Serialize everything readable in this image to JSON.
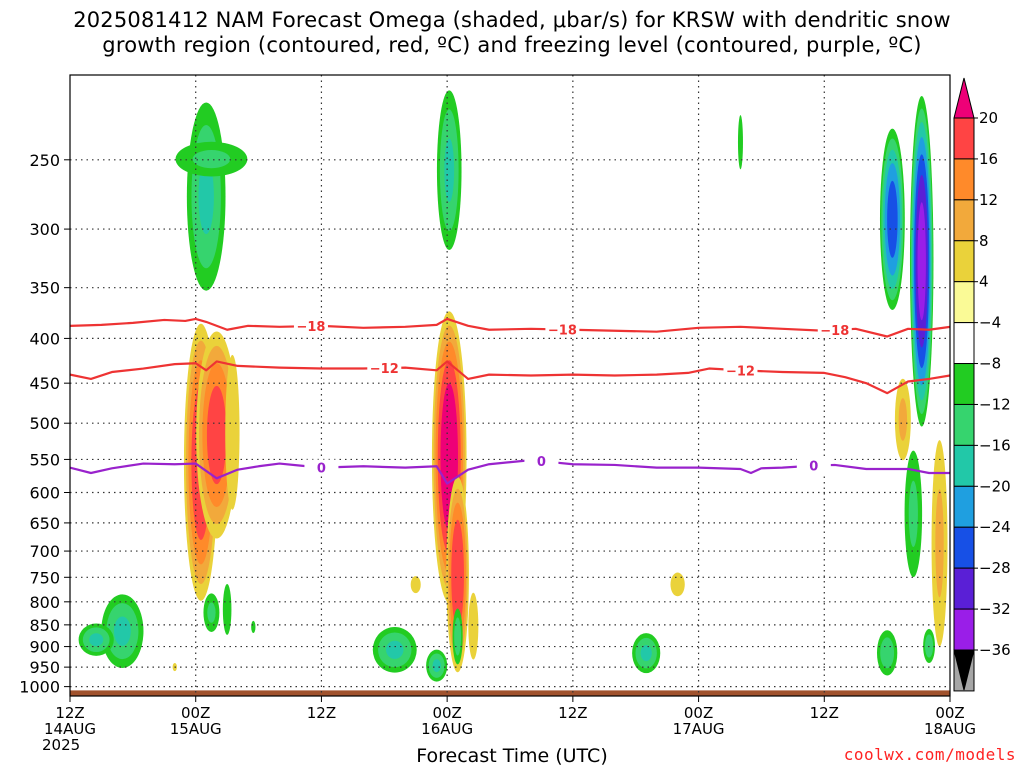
{
  "title_line1": "2025081412 NAM Forecast Omega (shaded, μbar/s) for KRSW with dendritic snow",
  "title_line2": "growth region (contoured, red, ºC) and freezing level (contoured, purple, ºC)",
  "xlabel": "Forecast Time (UTC)",
  "credit": "coolwx.com/models",
  "chart_data": {
    "type": "heatmap",
    "title": "2025081412 NAM Forecast Omega (shaded, μbar/s) for KRSW with dendritic snow growth region (contoured, red, ºC) and freezing level (contoured, purple, ºC)",
    "xlabel": "Forecast Time (UTC)",
    "ylabel": "",
    "x_range_hours": [
      0,
      84
    ],
    "y_range_hpa": [
      200,
      1025
    ],
    "y_scale": "log-pressure",
    "y_ticks": [
      "250",
      "300",
      "350",
      "400",
      "450",
      "500",
      "550",
      "600",
      "650",
      "700",
      "750",
      "800",
      "850",
      "900",
      "950",
      "1000"
    ],
    "x_ticks": [
      {
        "hour": 0,
        "lines": [
          "12Z",
          "14AUG",
          "2025"
        ]
      },
      {
        "hour": 12,
        "lines": [
          "00Z",
          "15AUG"
        ]
      },
      {
        "hour": 24,
        "lines": [
          "12Z"
        ]
      },
      {
        "hour": 36,
        "lines": [
          "00Z",
          "16AUG"
        ]
      },
      {
        "hour": 48,
        "lines": [
          "12Z"
        ]
      },
      {
        "hour": 60,
        "lines": [
          "00Z",
          "17AUG"
        ]
      },
      {
        "hour": 72,
        "lines": [
          "12Z"
        ]
      },
      {
        "hour": 84,
        "lines": [
          "00Z",
          "18AUG"
        ]
      }
    ],
    "grid": true,
    "colorbar": {
      "labels": [
        "20",
        "16",
        "12",
        "8",
        "4",
        "-4",
        "-8",
        "-12",
        "-16",
        "-20",
        "-24",
        "-28",
        "-32",
        "-36"
      ],
      "colors": [
        "#ff4444",
        "#ff8a2a",
        "#f2a93b",
        "#ead23a",
        "#fafa96",
        "#ffffff",
        "#22cc22",
        "#36d46e",
        "#22c8a8",
        "#1f9fe0",
        "#1750e6",
        "#5a1fd6",
        "#9a1ee8",
        "#a6a6a6"
      ],
      "top_arrow_color": "#ee0077",
      "bottom_arrow_color": "#000000"
    },
    "contours": [
      {
        "name": "-18",
        "color": "#ee3333",
        "label_hours": [
          23,
          47,
          73
        ],
        "points": [
          [
            0,
            387
          ],
          [
            3,
            386
          ],
          [
            6,
            384
          ],
          [
            9,
            381
          ],
          [
            11,
            382
          ],
          [
            12,
            380
          ],
          [
            13,
            383
          ],
          [
            15,
            391
          ],
          [
            17,
            387
          ],
          [
            20,
            388
          ],
          [
            24,
            387
          ],
          [
            28,
            389
          ],
          [
            32,
            388
          ],
          [
            35,
            386
          ],
          [
            36,
            380
          ],
          [
            38,
            387
          ],
          [
            40,
            391
          ],
          [
            44,
            390
          ],
          [
            48,
            391
          ],
          [
            52,
            392
          ],
          [
            56,
            393
          ],
          [
            60,
            389
          ],
          [
            64,
            388
          ],
          [
            68,
            390
          ],
          [
            72,
            392
          ],
          [
            75,
            390
          ],
          [
            78,
            398
          ],
          [
            80,
            390
          ],
          [
            82,
            391
          ],
          [
            84,
            388
          ]
        ]
      },
      {
        "name": "-12",
        "color": "#ee3333",
        "label_hours": [
          30,
          64
        ],
        "points": [
          [
            0,
            440
          ],
          [
            2,
            445
          ],
          [
            4,
            437
          ],
          [
            7,
            433
          ],
          [
            10,
            428
          ],
          [
            12,
            427
          ],
          [
            13,
            435
          ],
          [
            14,
            425
          ],
          [
            16,
            430
          ],
          [
            20,
            432
          ],
          [
            24,
            433
          ],
          [
            28,
            433
          ],
          [
            32,
            432
          ],
          [
            35,
            435
          ],
          [
            36,
            425
          ],
          [
            38,
            445
          ],
          [
            40,
            440
          ],
          [
            44,
            441
          ],
          [
            48,
            440
          ],
          [
            52,
            441
          ],
          [
            56,
            440
          ],
          [
            59,
            438
          ],
          [
            61,
            433
          ],
          [
            64,
            435
          ],
          [
            68,
            437
          ],
          [
            72,
            438
          ],
          [
            74,
            443
          ],
          [
            76,
            450
          ],
          [
            78,
            462
          ],
          [
            80,
            448
          ],
          [
            82,
            445
          ],
          [
            84,
            441
          ]
        ]
      },
      {
        "name": "0",
        "color": "#9922cc",
        "label_hours": [
          24,
          45,
          71
        ],
        "points": [
          [
            0,
            562
          ],
          [
            2,
            570
          ],
          [
            4,
            563
          ],
          [
            7,
            556
          ],
          [
            10,
            557
          ],
          [
            12,
            556
          ],
          [
            14,
            578
          ],
          [
            16,
            565
          ],
          [
            18,
            560
          ],
          [
            20,
            556
          ],
          [
            22,
            559
          ],
          [
            24,
            562
          ],
          [
            28,
            560
          ],
          [
            32,
            562
          ],
          [
            35,
            560
          ],
          [
            36,
            586
          ],
          [
            38,
            565
          ],
          [
            40,
            557
          ],
          [
            44,
            551
          ],
          [
            46,
            554
          ],
          [
            48,
            557
          ],
          [
            52,
            558
          ],
          [
            56,
            562
          ],
          [
            60,
            562
          ],
          [
            64,
            564
          ],
          [
            65,
            570
          ],
          [
            66,
            563
          ],
          [
            68,
            562
          ],
          [
            71,
            559
          ],
          [
            73,
            558
          ],
          [
            76,
            564
          ],
          [
            80,
            564
          ],
          [
            82,
            570
          ],
          [
            84,
            570
          ]
        ]
      }
    ],
    "omega_blobs": [
      {
        "hour": 13.0,
        "p_top": 205,
        "p_bot": 370,
        "hw": 2.2,
        "max": -12
      },
      {
        "hour": 13.5,
        "p_top": 235,
        "p_bot": 265,
        "hw": 4.5,
        "max": -8
      },
      {
        "hour": 12.5,
        "p_top": 370,
        "p_bot": 830,
        "hw": 1.8,
        "max": 20
      },
      {
        "hour": 14.0,
        "p_top": 380,
        "p_bot": 700,
        "hw": 2.2,
        "max": 18
      },
      {
        "hour": 15.5,
        "p_top": 380,
        "p_bot": 690,
        "hw": 1.0,
        "max": 6
      },
      {
        "hour": 13.5,
        "p_top": 770,
        "p_bot": 880,
        "hw": 1.0,
        "max": -8
      },
      {
        "hour": 15.0,
        "p_top": 740,
        "p_bot": 900,
        "hw": 0.6,
        "max": -6
      },
      {
        "hour": 17.5,
        "p_top": 835,
        "p_bot": 875,
        "hw": 0.3,
        "max": -6
      },
      {
        "hour": 5.0,
        "p_top": 770,
        "p_bot": 970,
        "hw": 2.4,
        "max": -12
      },
      {
        "hour": 2.5,
        "p_top": 840,
        "p_bot": 930,
        "hw": 2.0,
        "max": -12
      },
      {
        "hour": 10.0,
        "p_top": 935,
        "p_bot": 965,
        "hw": 0.3,
        "max": 6
      },
      {
        "hour": 36.2,
        "p_top": 200,
        "p_bot": 330,
        "hw": 1.4,
        "max": -12
      },
      {
        "hour": 36.2,
        "p_top": 360,
        "p_bot": 830,
        "hw": 1.8,
        "max": 24
      },
      {
        "hour": 37.0,
        "p_top": 560,
        "p_bot": 990,
        "hw": 1.2,
        "max": 20
      },
      {
        "hour": 38.5,
        "p_top": 750,
        "p_bot": 970,
        "hw": 0.7,
        "max": 6
      },
      {
        "hour": 33.0,
        "p_top": 740,
        "p_bot": 790,
        "hw": 0.7,
        "max": 6
      },
      {
        "hour": 31.0,
        "p_top": 845,
        "p_bot": 975,
        "hw": 2.5,
        "max": -12
      },
      {
        "hour": 35.0,
        "p_top": 900,
        "p_bot": 995,
        "hw": 1.2,
        "max": -12
      },
      {
        "hour": 37.0,
        "p_top": 800,
        "p_bot": 960,
        "hw": 0.6,
        "max": -10
      },
      {
        "hour": 55.0,
        "p_top": 860,
        "p_bot": 975,
        "hw": 1.6,
        "max": -12
      },
      {
        "hour": 58.0,
        "p_top": 730,
        "p_bot": 800,
        "hw": 1.0,
        "max": 6
      },
      {
        "hour": 64.0,
        "p_top": 215,
        "p_bot": 265,
        "hw": 0.35,
        "max": -6
      },
      {
        "hour": 78.5,
        "p_top": 225,
        "p_bot": 380,
        "hw": 1.3,
        "max": -22
      },
      {
        "hour": 81.3,
        "p_top": 205,
        "p_bot": 520,
        "hw": 1.2,
        "max": -30
      },
      {
        "hour": 79.5,
        "p_top": 430,
        "p_bot": 570,
        "hw": 1.0,
        "max": 8
      },
      {
        "hour": 80.5,
        "p_top": 510,
        "p_bot": 790,
        "hw": 1.1,
        "max": -8
      },
      {
        "hour": 83.0,
        "p_top": 480,
        "p_bot": 980,
        "hw": 1.0,
        "max": 8
      },
      {
        "hour": 78.0,
        "p_top": 850,
        "p_bot": 985,
        "hw": 1.2,
        "max": -10
      },
      {
        "hour": 82.0,
        "p_top": 850,
        "p_bot": 950,
        "hw": 0.7,
        "max": -10
      }
    ],
    "ground": {
      "color": "#a0522d",
      "p_top": 1010
    }
  }
}
